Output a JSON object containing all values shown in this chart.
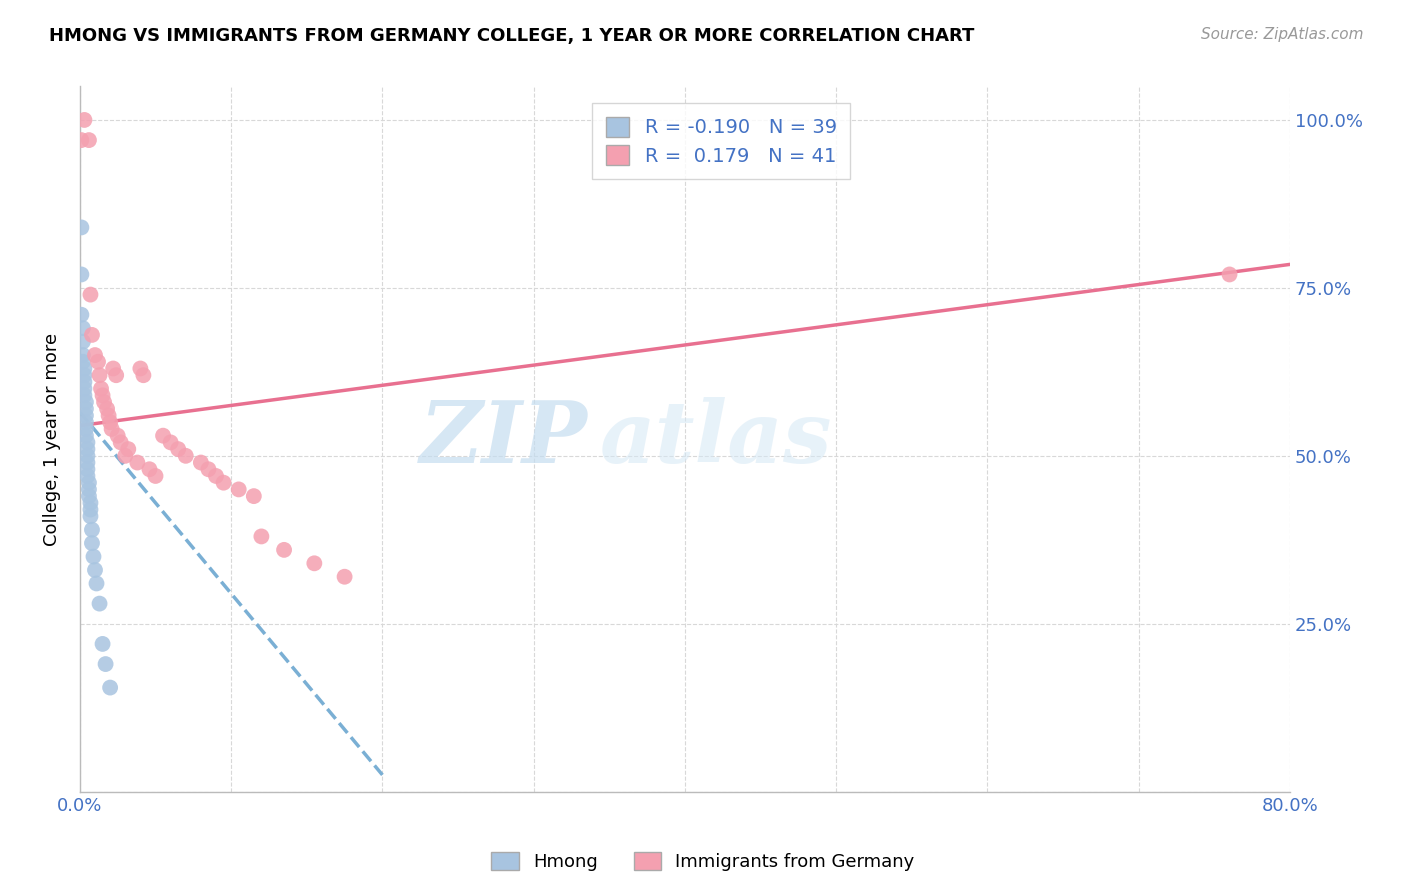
{
  "title": "HMONG VS IMMIGRANTS FROM GERMANY COLLEGE, 1 YEAR OR MORE CORRELATION CHART",
  "source": "Source: ZipAtlas.com",
  "ylabel": "College, 1 year or more",
  "xmin": 0.0,
  "xmax": 0.8,
  "ymin": 0.0,
  "ymax": 1.05,
  "xtick_positions": [
    0.0,
    0.1,
    0.2,
    0.3,
    0.4,
    0.5,
    0.6,
    0.7,
    0.8
  ],
  "xticklabels": [
    "0.0%",
    "",
    "",
    "",
    "",
    "",
    "",
    "",
    "80.0%"
  ],
  "ytick_positions": [
    0.0,
    0.25,
    0.5,
    0.75,
    1.0
  ],
  "yticklabels_right": [
    "",
    "25.0%",
    "50.0%",
    "75.0%",
    "100.0%"
  ],
  "legend_label1": "Hmong",
  "legend_label2": "Immigrants from Germany",
  "color_hmong_fill": "#a8c4e0",
  "color_germany_fill": "#f4a0b0",
  "color_hmong_line": "#7aafd4",
  "color_germany_line": "#e87090",
  "color_axis_blue": "#4472c4",
  "color_grid": "#d8d8d8",
  "watermark_zip": "ZIP",
  "watermark_atlas": "atlas",
  "hmong_x": [
    0.001,
    0.001,
    0.001,
    0.002,
    0.002,
    0.002,
    0.002,
    0.003,
    0.003,
    0.003,
    0.003,
    0.003,
    0.004,
    0.004,
    0.004,
    0.004,
    0.004,
    0.004,
    0.005,
    0.005,
    0.005,
    0.005,
    0.005,
    0.005,
    0.006,
    0.006,
    0.006,
    0.007,
    0.007,
    0.007,
    0.008,
    0.008,
    0.009,
    0.01,
    0.011,
    0.013,
    0.015,
    0.017,
    0.02
  ],
  "hmong_y": [
    0.84,
    0.77,
    0.71,
    0.69,
    0.67,
    0.65,
    0.64,
    0.63,
    0.62,
    0.61,
    0.6,
    0.59,
    0.58,
    0.57,
    0.56,
    0.55,
    0.54,
    0.53,
    0.52,
    0.51,
    0.5,
    0.49,
    0.48,
    0.47,
    0.46,
    0.45,
    0.44,
    0.43,
    0.42,
    0.41,
    0.39,
    0.37,
    0.35,
    0.33,
    0.31,
    0.28,
    0.22,
    0.19,
    0.155
  ],
  "germany_x": [
    0.001,
    0.003,
    0.006,
    0.007,
    0.008,
    0.01,
    0.012,
    0.013,
    0.014,
    0.015,
    0.016,
    0.018,
    0.019,
    0.02,
    0.021,
    0.022,
    0.024,
    0.025,
    0.027,
    0.03,
    0.032,
    0.038,
    0.04,
    0.042,
    0.046,
    0.05,
    0.055,
    0.06,
    0.065,
    0.07,
    0.08,
    0.085,
    0.09,
    0.095,
    0.105,
    0.115,
    0.12,
    0.135,
    0.155,
    0.175,
    0.76
  ],
  "germany_y": [
    0.97,
    1.0,
    0.97,
    0.74,
    0.68,
    0.65,
    0.64,
    0.62,
    0.6,
    0.59,
    0.58,
    0.57,
    0.56,
    0.55,
    0.54,
    0.63,
    0.62,
    0.53,
    0.52,
    0.5,
    0.51,
    0.49,
    0.63,
    0.62,
    0.48,
    0.47,
    0.53,
    0.52,
    0.51,
    0.5,
    0.49,
    0.48,
    0.47,
    0.46,
    0.45,
    0.44,
    0.38,
    0.36,
    0.34,
    0.32,
    0.77
  ],
  "hmong_line_x": [
    0.0,
    0.2
  ],
  "hmong_line_y": [
    0.565,
    0.025
  ],
  "germany_line_x": [
    0.0,
    0.8
  ],
  "germany_line_y": [
    0.545,
    0.785
  ]
}
